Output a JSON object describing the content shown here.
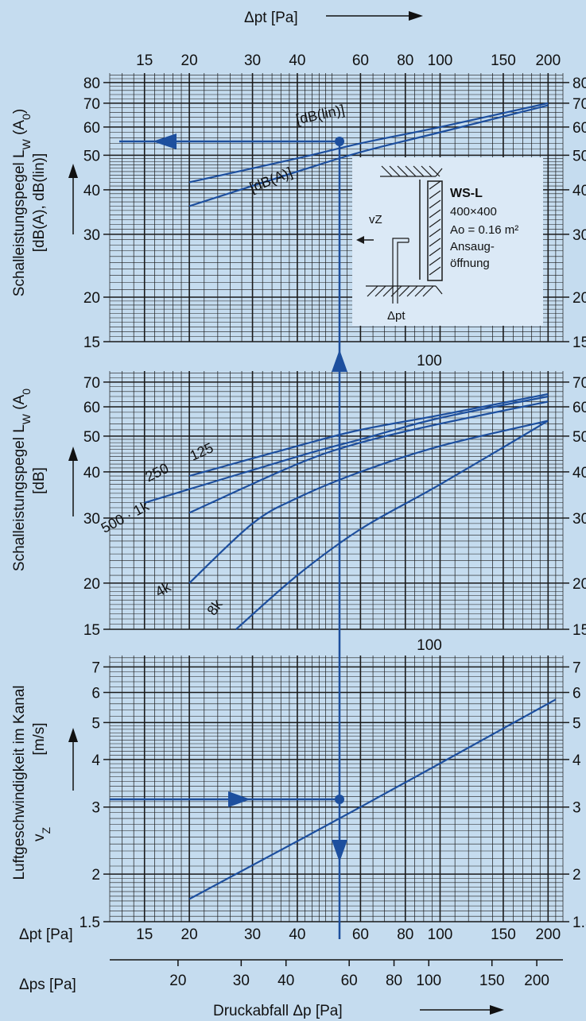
{
  "chart_data": [
    {
      "type": "line",
      "title": "",
      "xlabel": "Δpt [Pa]",
      "ylabel": "Schalleistungspegel LW (A0) [dB(A), dB(lin)]",
      "xscale": "log",
      "yscale": "log",
      "xlim": [
        12,
        220
      ],
      "ylim": [
        15,
        85
      ],
      "y_ticks": [
        15,
        20,
        30,
        40,
        50,
        60,
        70,
        80
      ],
      "grid": true,
      "series": [
        {
          "name": "[dB(lin)]",
          "x": [
            20,
            40,
            60,
            100,
            200
          ],
          "y": [
            42,
            49,
            54,
            60,
            70
          ]
        },
        {
          "name": "[dB(A)]",
          "x": [
            20,
            40,
            60,
            100,
            200
          ],
          "y": [
            36,
            45,
            51,
            58,
            69
          ]
        }
      ],
      "annotations": [
        "[dB(lin)]",
        "[dB(A)]"
      ]
    },
    {
      "type": "line",
      "title": "",
      "xlabel": "Δpt [Pa]",
      "ylabel": "Schalleistungspegel LW (A0 [dB]",
      "xscale": "log",
      "yscale": "log",
      "xlim": [
        12,
        220
      ],
      "ylim": [
        15,
        75
      ],
      "y_ticks": [
        15,
        20,
        30,
        40,
        50,
        60,
        70
      ],
      "grid": true,
      "series": [
        {
          "name": "125",
          "x": [
            20,
            40,
            60,
            100,
            200
          ],
          "y": [
            39,
            47,
            52,
            57,
            65
          ]
        },
        {
          "name": "250",
          "x": [
            15,
            40,
            60,
            100,
            200
          ],
          "y": [
            33,
            44,
            49,
            56,
            64
          ]
        },
        {
          "name": "500 · 1k",
          "x": [
            20,
            40,
            60,
            100,
            200
          ],
          "y": [
            31,
            42,
            48,
            54,
            62
          ]
        },
        {
          "name": "4k",
          "x": [
            20,
            30,
            40,
            60,
            100,
            200
          ],
          "y": [
            20,
            29,
            34,
            40,
            47,
            55
          ]
        },
        {
          "name": "8k",
          "x": [
            27,
            40,
            60,
            100,
            200
          ],
          "y": [
            15,
            21,
            28,
            37,
            55
          ]
        }
      ],
      "annotations": [
        "125",
        "250",
        "500 · 1k",
        "4k",
        "8k"
      ]
    },
    {
      "type": "line",
      "title": "",
      "xlabel": "Druckabfall Δp [Pa]",
      "ylabel": "Luftgeschwindigkeit im Kanal vZ [m/s]",
      "xscale": "log",
      "yscale": "log",
      "xlim": [
        12,
        220
      ],
      "ylim": [
        1.5,
        7.5
      ],
      "y_ticks": [
        1.5,
        2,
        3,
        4,
        5,
        6,
        7
      ],
      "grid": true,
      "series": [
        {
          "name": "",
          "x": [
            20,
            60,
            210
          ],
          "y": [
            1.72,
            3.0,
            5.75
          ]
        }
      ],
      "reading_example": {
        "vz": 3.0,
        "delta_pt": 62,
        "LW_dBA": 54
      }
    }
  ],
  "labels": {
    "top_axis_label": "Δpt [Pa]",
    "top_ticks": [
      "15",
      "20",
      "30",
      "40",
      "60",
      "80",
      "100",
      "150",
      "200"
    ],
    "mid_top_label": "100",
    "low_top_label": "100",
    "bottom_pt_unit_label": "Δpt [Pa]",
    "bottom_pt_ticks": [
      "15",
      "20",
      "30",
      "40",
      "60",
      "80",
      "100",
      "150",
      "200"
    ],
    "bottom_ps_unit_label": "Δps [Pa]",
    "bottom_ps_ticks": [
      "20",
      "30",
      "40",
      "60",
      "80",
      "100",
      "150",
      "200"
    ],
    "bottom_axis_title": "Druckabfall Δp [Pa]"
  },
  "inset": {
    "model": "WS-L",
    "size": "400×400",
    "area": "Ao = 0.16 m²",
    "opening_line1": "Ansaug-",
    "opening_line2": "öffnung",
    "vz_label": "vZ",
    "dp_label": "Δpt"
  },
  "colors": {
    "background": "#c5dcef",
    "curve": "#1d4f9e",
    "grid": "#1a1a1a"
  }
}
